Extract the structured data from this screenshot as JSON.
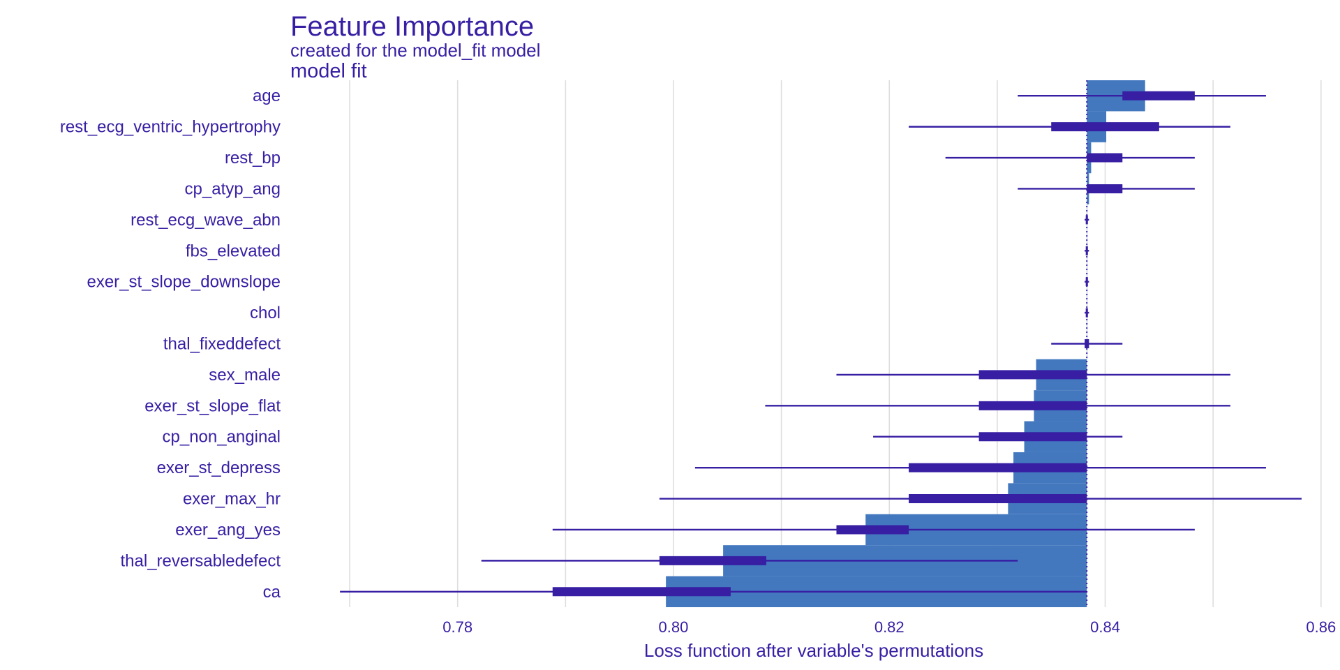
{
  "chart_data": {
    "type": "bar",
    "title": "Feature Importance",
    "subtitle": "created for the model_fit model",
    "facet_label": "model  fit",
    "xlabel": "Loss function after variable's permutations",
    "ylabel": "",
    "xlim": [
      0.7645,
      0.8615
    ],
    "x_ticks": [
      0.78,
      0.8,
      0.82,
      0.84,
      0.86
    ],
    "x_tick_labels": [
      "0.78",
      "0.80",
      "0.82",
      "0.84",
      "0.86"
    ],
    "grid": true,
    "baseline": 0.8383,
    "colors": {
      "bar": "#4378bf",
      "whisker": "#371ea3",
      "text": "#371ea3",
      "grid": "#dedede"
    },
    "variables": [
      {
        "name": "age",
        "value": 0.8437,
        "min": 0.8319,
        "q1": 0.8416,
        "q3": 0.8483,
        "max": 0.8549
      },
      {
        "name": "rest_ecg_ventric_hypertrophy",
        "value": 0.8401,
        "min": 0.8218,
        "q1": 0.835,
        "q3": 0.845,
        "max": 0.8516
      },
      {
        "name": "rest_bp",
        "value": 0.8387,
        "min": 0.8252,
        "q1": 0.8383,
        "q3": 0.8416,
        "max": 0.8483
      },
      {
        "name": "cp_atyp_ang",
        "value": 0.8385,
        "min": 0.8319,
        "q1": 0.8383,
        "q3": 0.8416,
        "max": 0.8483
      },
      {
        "name": "rest_ecg_wave_abn",
        "value": 0.8383,
        "min": 0.8381,
        "q1": 0.8382,
        "q3": 0.8384,
        "max": 0.8385
      },
      {
        "name": "fbs_elevated",
        "value": 0.8383,
        "min": 0.8381,
        "q1": 0.8382,
        "q3": 0.8384,
        "max": 0.8385
      },
      {
        "name": "exer_st_slope_downslope",
        "value": 0.8383,
        "min": 0.8381,
        "q1": 0.8382,
        "q3": 0.8384,
        "max": 0.8385
      },
      {
        "name": "chol",
        "value": 0.8383,
        "min": 0.8381,
        "q1": 0.8382,
        "q3": 0.8384,
        "max": 0.8385
      },
      {
        "name": "thal_fixeddefect",
        "value": 0.8383,
        "min": 0.835,
        "q1": 0.8381,
        "q3": 0.8385,
        "max": 0.8416
      },
      {
        "name": "sex_male",
        "value": 0.8336,
        "min": 0.8151,
        "q1": 0.8283,
        "q3": 0.8383,
        "max": 0.8516
      },
      {
        "name": "exer_st_slope_flat",
        "value": 0.8334,
        "min": 0.8085,
        "q1": 0.8283,
        "q3": 0.8383,
        "max": 0.8516
      },
      {
        "name": "cp_non_anginal",
        "value": 0.8325,
        "min": 0.8185,
        "q1": 0.8283,
        "q3": 0.8383,
        "max": 0.8416
      },
      {
        "name": "exer_st_depress",
        "value": 0.8315,
        "min": 0.802,
        "q1": 0.8218,
        "q3": 0.8383,
        "max": 0.8549
      },
      {
        "name": "exer_max_hr",
        "value": 0.831,
        "min": 0.7987,
        "q1": 0.8218,
        "q3": 0.8383,
        "max": 0.8582
      },
      {
        "name": "exer_ang_yes",
        "value": 0.8178,
        "min": 0.7888,
        "q1": 0.8151,
        "q3": 0.8218,
        "max": 0.8483
      },
      {
        "name": "thal_reversabledefect",
        "value": 0.8046,
        "min": 0.7822,
        "q1": 0.7987,
        "q3": 0.8086,
        "max": 0.8319
      },
      {
        "name": "ca",
        "value": 0.7993,
        "min": 0.7691,
        "q1": 0.7888,
        "q3": 0.8053,
        "max": 0.8383
      }
    ]
  }
}
